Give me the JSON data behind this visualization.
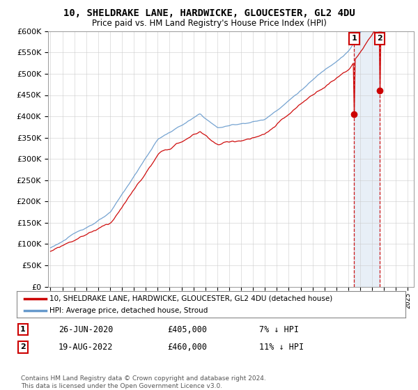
{
  "title": "10, SHELDRAKE LANE, HARDWICKE, GLOUCESTER, GL2 4DU",
  "subtitle": "Price paid vs. HM Land Registry's House Price Index (HPI)",
  "legend_line1": "10, SHELDRAKE LANE, HARDWICKE, GLOUCESTER, GL2 4DU (detached house)",
  "legend_line2": "HPI: Average price, detached house, Stroud",
  "footer": "Contains HM Land Registry data © Crown copyright and database right 2024.\nThis data is licensed under the Open Government Licence v3.0.",
  "sale1_date": "26-JUN-2020",
  "sale1_price": "£405,000",
  "sale1_hpi": "7% ↓ HPI",
  "sale1_year": 2020.49,
  "sale1_value": 405000,
  "sale2_date": "19-AUG-2022",
  "sale2_price": "£460,000",
  "sale2_hpi": "11% ↓ HPI",
  "sale2_year": 2022.63,
  "sale2_value": 460000,
  "ylim": [
    0,
    600000
  ],
  "xlim_start": 1994.8,
  "xlim_end": 2025.5,
  "red_color": "#cc0000",
  "blue_color": "#6699cc",
  "blue_fill": "#ddeeff",
  "background_color": "#ffffff",
  "grid_color": "#cccccc"
}
